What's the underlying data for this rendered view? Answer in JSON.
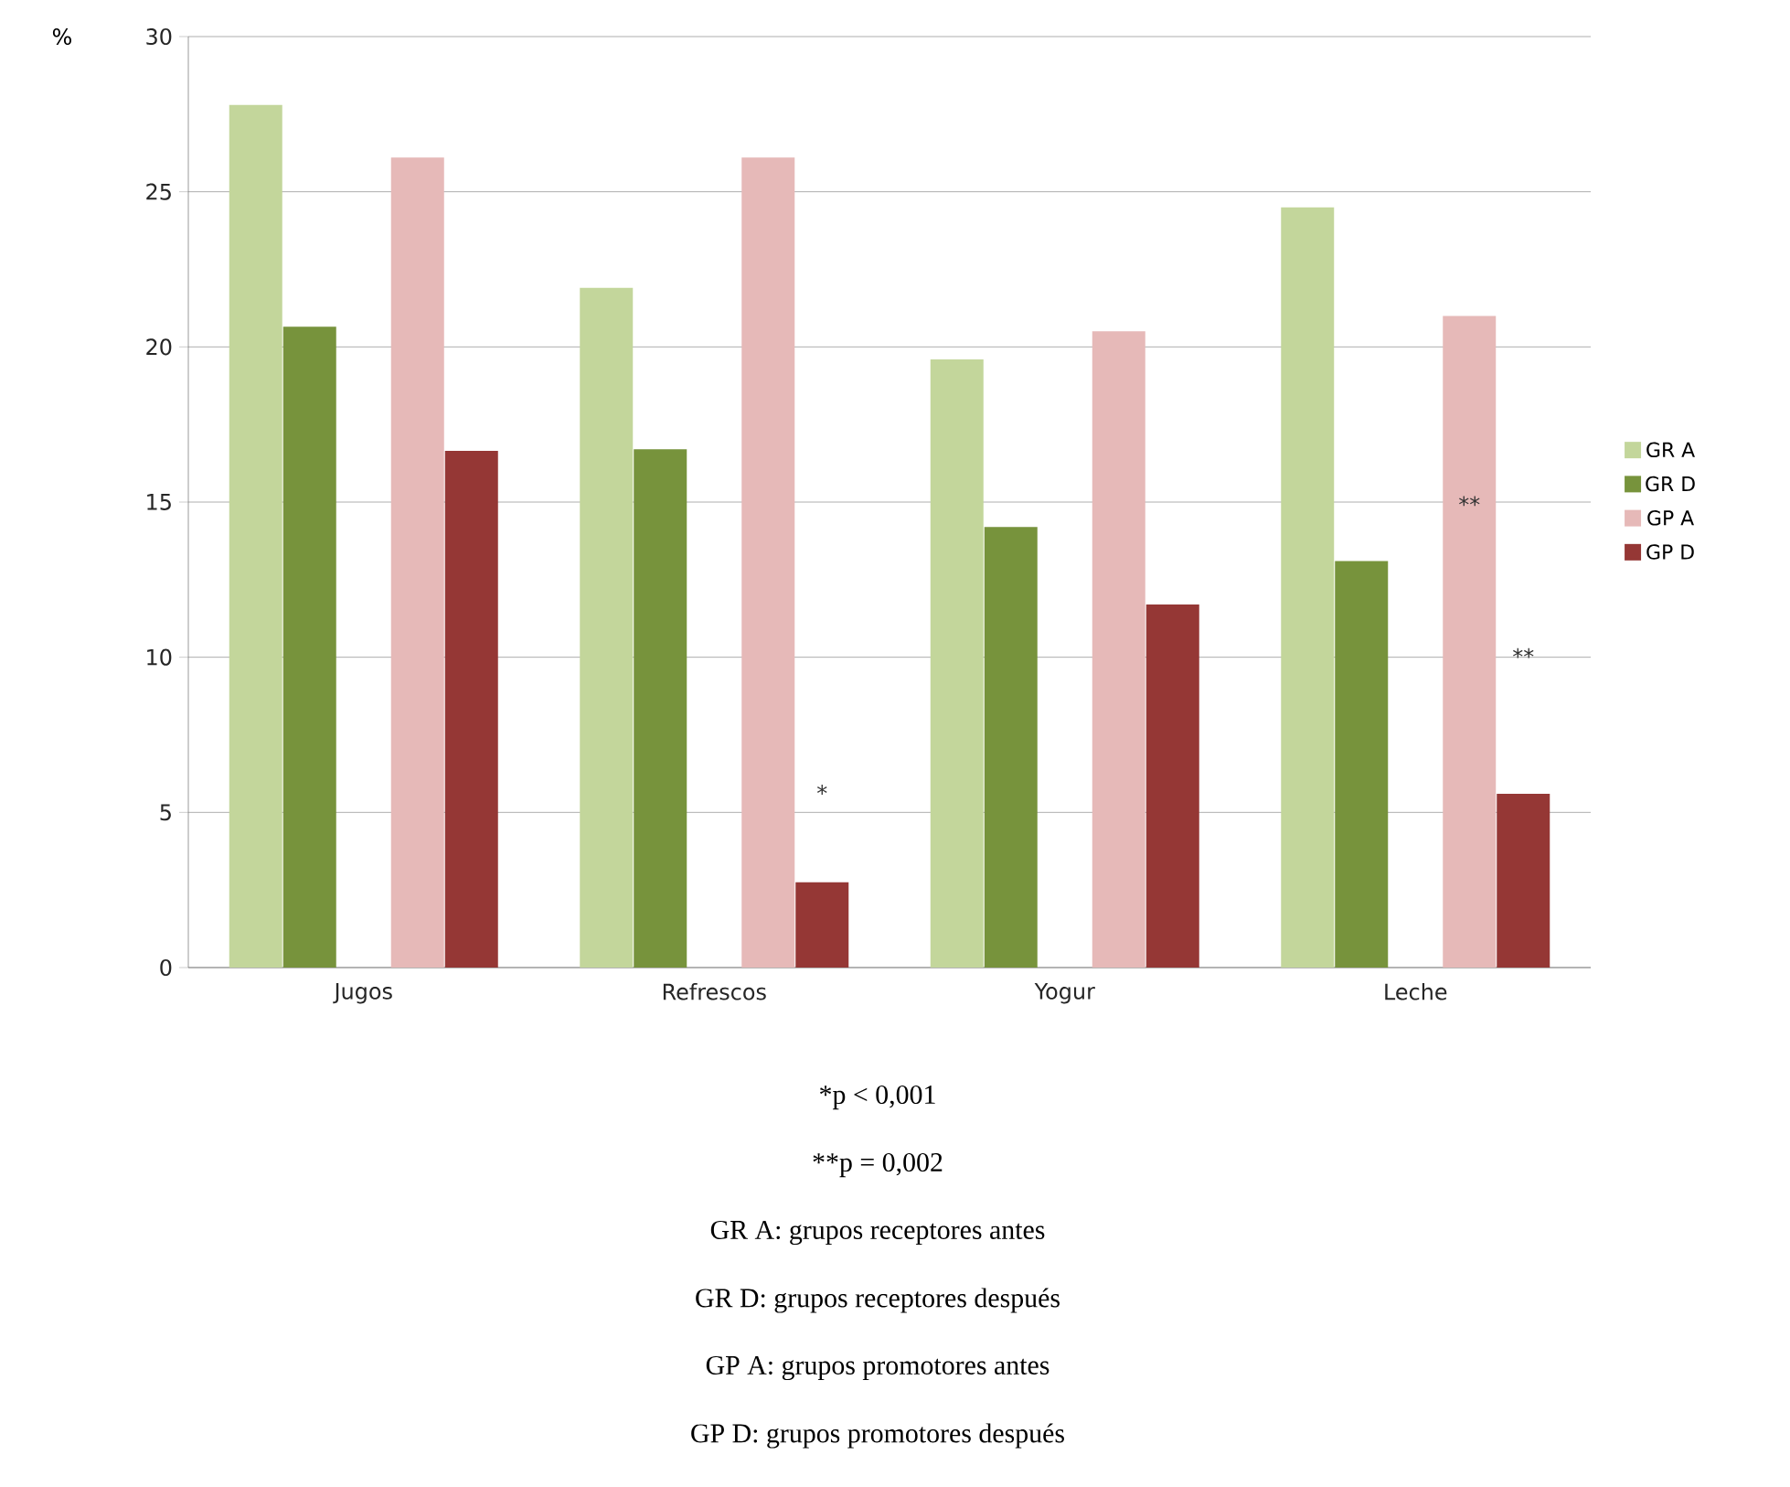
{
  "chart_data": {
    "type": "bar",
    "ylabel": "%",
    "categories": [
      "Jugos",
      "Refrescos",
      "Yogur",
      "Leche"
    ],
    "series": [
      {
        "name": "GR A",
        "color": "#c3d69b",
        "values": [
          27.8,
          21.9,
          19.6,
          24.5
        ]
      },
      {
        "name": "GR D",
        "color": "#77933c",
        "values": [
          20.65,
          16.7,
          14.2,
          13.1
        ]
      },
      {
        "name": "GP A",
        "color": "#e6b9b8",
        "values": [
          26.1,
          26.1,
          20.5,
          21.0
        ]
      },
      {
        "name": "GP D",
        "color": "#953735",
        "values": [
          16.65,
          2.75,
          11.7,
          5.6
        ]
      }
    ],
    "ylim": [
      0,
      30
    ],
    "yticks": [
      0,
      5,
      10,
      15,
      20,
      25,
      30
    ],
    "grid": "y",
    "legend": "right",
    "annotations": [
      "*",
      "**",
      "**",
      "*p < 0,001",
      "**p = 0,002",
      "GR A: grupos receptores antes",
      "GR D: grupos receptores después",
      "GP A: grupos promotores antes",
      "GP D: grupos promotores después"
    ]
  }
}
